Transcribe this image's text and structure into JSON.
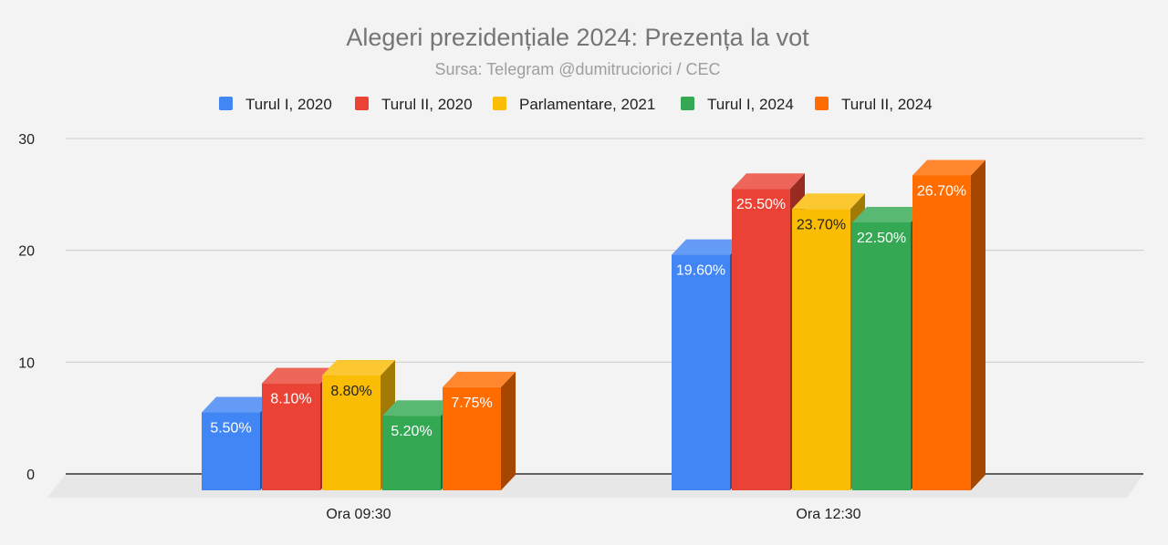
{
  "chart_data": {
    "type": "bar",
    "title": "Alegeri prezidențiale 2024: Prezența la vot",
    "subtitle": "Sursa: Telegram @dumitruciorici / CEC",
    "xlabel": "",
    "ylabel": "",
    "ylim": [
      0,
      30
    ],
    "yticks": [
      "0",
      "10",
      "20",
      "30"
    ],
    "grid": true,
    "legend_position": "top",
    "categories": [
      "Ora 09:30",
      "Ora 12:30"
    ],
    "series": [
      {
        "name": "Turul I, 2020",
        "color": "#4285f4",
        "label_color": "#ffffff",
        "values": [
          5.5,
          19.6
        ],
        "labels": [
          "5.50%",
          "19.60%"
        ]
      },
      {
        "name": "Turul II, 2020",
        "color": "#ea4335",
        "label_color": "#ffffff",
        "values": [
          8.1,
          25.5
        ],
        "labels": [
          "8.10%",
          "25.50%"
        ]
      },
      {
        "name": "Parlamentare, 2021",
        "color": "#fbbc04",
        "label_color": "#222222",
        "values": [
          8.8,
          23.7
        ],
        "labels": [
          "8.80%",
          "23.70%"
        ]
      },
      {
        "name": "Turul I, 2024",
        "color": "#34a853",
        "label_color": "#ffffff",
        "values": [
          5.2,
          22.5
        ],
        "labels": [
          "5.20%",
          "22.50%"
        ]
      },
      {
        "name": "Turul II, 2024",
        "color": "#ff6d01",
        "label_color": "#ffffff",
        "values": [
          7.75,
          26.7
        ],
        "labels": [
          "7.75%",
          "26.70%"
        ]
      }
    ]
  }
}
